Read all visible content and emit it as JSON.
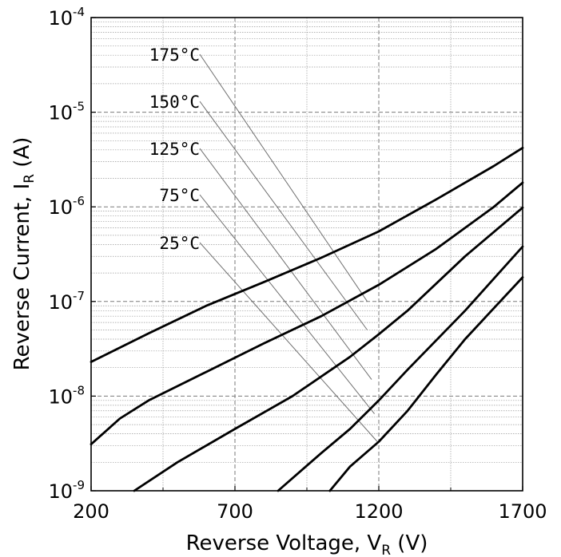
{
  "chart_data": {
    "type": "line",
    "title": "",
    "xlabel": "Reverse Voltage, V",
    "xlabel_sub": "R",
    "xlabel_unit": " (V)",
    "ylabel": "Reverse Current, I",
    "ylabel_sub": "R",
    "ylabel_unit": " (A)",
    "xlim": [
      200,
      1700
    ],
    "ylim": [
      1e-09,
      0.0001
    ],
    "yscale": "log",
    "grid": true,
    "x_ticks": [
      200,
      700,
      1200,
      1700
    ],
    "x_tick_labels": [
      "200",
      "700",
      "1200",
      "1700"
    ],
    "y_ticks": [
      1e-09,
      1e-08,
      1e-07,
      1e-06,
      1e-05,
      0.0001
    ],
    "y_tick_base": "10",
    "y_tick_exponents": [
      "-9",
      "-8",
      "-7",
      "-6",
      "-5",
      "-4"
    ],
    "series": [
      {
        "name": "175°C",
        "x": [
          200,
          400,
          600,
          800,
          1000,
          1200,
          1400,
          1600,
          1700
        ],
        "y": [
          2.3e-08,
          4.6e-08,
          9e-08,
          1.6e-07,
          2.9e-07,
          5.5e-07,
          1.2e-06,
          2.7e-06,
          4.2e-06
        ]
      },
      {
        "name": "150°C",
        "x": [
          200,
          300,
          400,
          600,
          800,
          1000,
          1200,
          1400,
          1600,
          1700
        ],
        "y": [
          3.1e-09,
          5.8e-09,
          9e-09,
          1.8e-08,
          3.6e-08,
          7e-08,
          1.5e-07,
          3.6e-07,
          1e-06,
          1.8e-06
        ]
      },
      {
        "name": "125°C",
        "x": [
          350,
          500,
          700,
          900,
          1100,
          1200,
          1300,
          1500,
          1700
        ],
        "y": [
          1e-09,
          2e-09,
          4.5e-09,
          1e-08,
          2.6e-08,
          4.5e-08,
          8e-08,
          3e-07,
          9.8e-07
        ]
      },
      {
        "name": "75°C",
        "x": [
          850,
          1000,
          1100,
          1200,
          1300,
          1500,
          1700
        ],
        "y": [
          1e-09,
          2.5e-09,
          4.5e-09,
          9e-09,
          1.9e-08,
          8e-08,
          3.8e-07
        ]
      },
      {
        "name": "25°C",
        "x": [
          1030,
          1100,
          1200,
          1300,
          1400,
          1500,
          1600,
          1700
        ],
        "y": [
          1e-09,
          1.8e-09,
          3.3e-09,
          7e-09,
          1.7e-08,
          4e-08,
          8.5e-08,
          1.8e-07
        ]
      }
    ],
    "annotations": [
      {
        "text": "175°C",
        "series": "175°C",
        "leader_end_x": 1160,
        "leader_end_y": 1e-07
      },
      {
        "text": "150°C",
        "series": "150°C",
        "leader_end_x": 1160,
        "leader_end_y": 5e-08
      },
      {
        "text": "125°C",
        "series": "125°C",
        "leader_end_x": 1175,
        "leader_end_y": 1.5e-08
      },
      {
        "text": "75°C",
        "series": "75°C",
        "leader_end_x": 1185,
        "leader_end_y": 6.5e-09
      },
      {
        "text": "25°C",
        "series": "25°C",
        "leader_end_x": 1195,
        "leader_end_y": 3.3e-09
      }
    ]
  }
}
